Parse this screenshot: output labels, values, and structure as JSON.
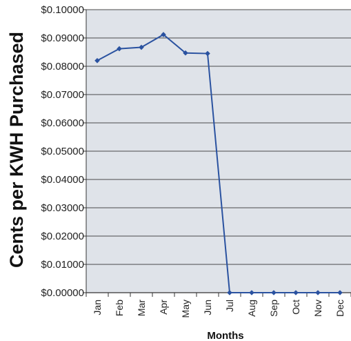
{
  "chart_data": {
    "type": "line",
    "title": "",
    "xlabel": "Months",
    "ylabel": "Cents per KWH Purchased",
    "categories": [
      "Jan",
      "Feb",
      "Mar",
      "Apr",
      "May",
      "Jun",
      "Jul",
      "Aug",
      "Sep",
      "Oct",
      "Nov",
      "Dec"
    ],
    "series": [
      {
        "values": [
          0.082,
          0.0862,
          0.0867,
          0.0912,
          0.0847,
          0.0845,
          0,
          0,
          0,
          0,
          0,
          0
        ]
      }
    ],
    "ylim": [
      0,
      0.1
    ],
    "yticks": [
      "$0.00000",
      "$0.01000",
      "$0.02000",
      "$0.03000",
      "$0.04000",
      "$0.05000",
      "$0.06000",
      "$0.07000",
      "$0.08000",
      "$0.09000",
      "$0.10000"
    ],
    "grid": true,
    "legend": "none",
    "colors": {
      "line": "#2a52a0",
      "plot_bg": "#dfe3e9",
      "grid": "#4a4a4a"
    }
  }
}
